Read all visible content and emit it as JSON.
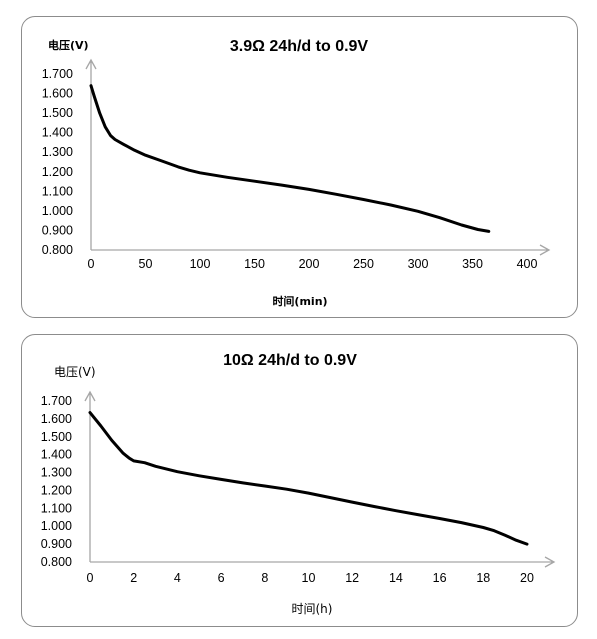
{
  "chart_data": [
    {
      "type": "line",
      "title": "3.9Ω 24h/d to 0.9V",
      "ylabel": "电压(V)",
      "xlabel": "时间(min)",
      "xlim": [
        0,
        400
      ],
      "ylim": [
        0.8,
        1.7
      ],
      "x_ticks": [
        "0",
        "50",
        "100",
        "150",
        "200",
        "250",
        "300",
        "350",
        "400"
      ],
      "y_ticks": [
        "0.800",
        "0.900",
        "1.000",
        "1.100",
        "1.200",
        "1.300",
        "1.400",
        "1.500",
        "1.600",
        "1.700"
      ],
      "grid": false,
      "series": [
        {
          "x": [
            0,
            3,
            8,
            13,
            18,
            22,
            30,
            40,
            50,
            65,
            80,
            90,
            100,
            125,
            150,
            175,
            200,
            225,
            250,
            275,
            300,
            320,
            340,
            355,
            365
          ],
          "values": [
            1.64,
            1.585,
            1.5,
            1.43,
            1.385,
            1.365,
            1.34,
            1.31,
            1.285,
            1.255,
            1.225,
            1.208,
            1.195,
            1.172,
            1.152,
            1.132,
            1.11,
            1.085,
            1.058,
            1.03,
            0.998,
            0.965,
            0.928,
            0.905,
            0.895
          ]
        }
      ]
    },
    {
      "type": "line",
      "title": "10Ω 24h/d to 0.9V",
      "ylabel": "电压(V)",
      "xlabel": "时间(h)",
      "xlim": [
        0,
        20
      ],
      "ylim": [
        0.8,
        1.7
      ],
      "x_ticks": [
        "0",
        "2",
        "4",
        "6",
        "8",
        "10",
        "12",
        "14",
        "16",
        "18",
        "20"
      ],
      "y_ticks": [
        "0.800",
        "0.900",
        "1.000",
        "1.100",
        "1.200",
        "1.300",
        "1.400",
        "1.500",
        "1.600",
        "1.700"
      ],
      "grid": false,
      "series": [
        {
          "x": [
            0,
            0.5,
            1,
            1.5,
            1.8,
            2,
            2.5,
            3,
            4,
            5,
            6,
            7,
            8,
            9,
            10,
            11,
            12,
            13,
            14,
            15,
            16,
            17,
            18,
            18.5,
            19,
            19.5,
            20
          ],
          "values": [
            1.635,
            1.56,
            1.48,
            1.41,
            1.38,
            1.365,
            1.355,
            1.335,
            1.305,
            1.282,
            1.262,
            1.242,
            1.225,
            1.207,
            1.185,
            1.16,
            1.135,
            1.11,
            1.087,
            1.065,
            1.043,
            1.02,
            0.993,
            0.975,
            0.95,
            0.922,
            0.9
          ]
        }
      ]
    }
  ]
}
